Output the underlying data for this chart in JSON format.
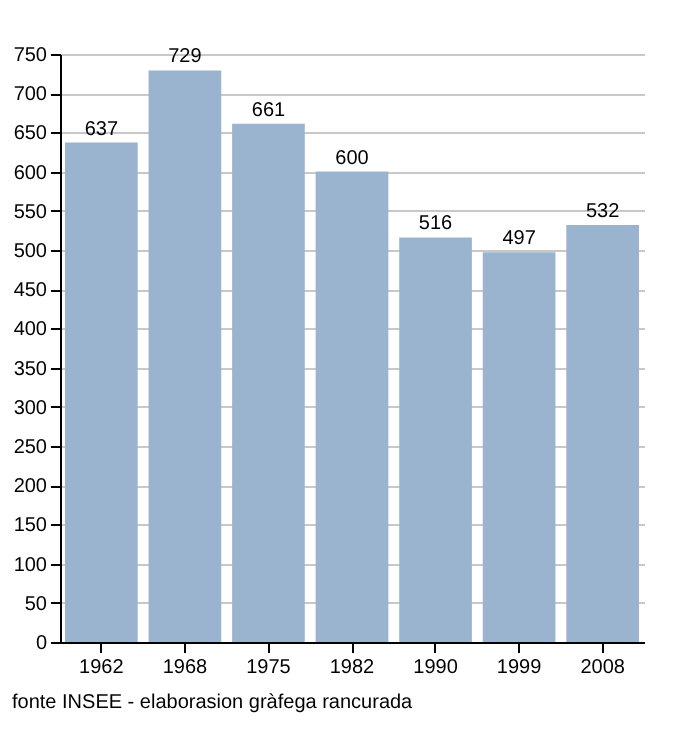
{
  "chart_data": {
    "type": "bar",
    "categories": [
      "1962",
      "1968",
      "1975",
      "1982",
      "1990",
      "1999",
      "2008"
    ],
    "values": [
      637,
      729,
      661,
      600,
      516,
      497,
      532
    ],
    "color": "#9ab3cf",
    "ylim": [
      0,
      750
    ],
    "yticks": [
      0,
      50,
      100,
      150,
      200,
      250,
      300,
      350,
      400,
      450,
      500,
      550,
      600,
      650,
      700,
      750
    ],
    "grid": true,
    "data_labels": true,
    "annotations": [
      "fonte INSEE - elaborasion gràfega rancurada"
    ]
  }
}
